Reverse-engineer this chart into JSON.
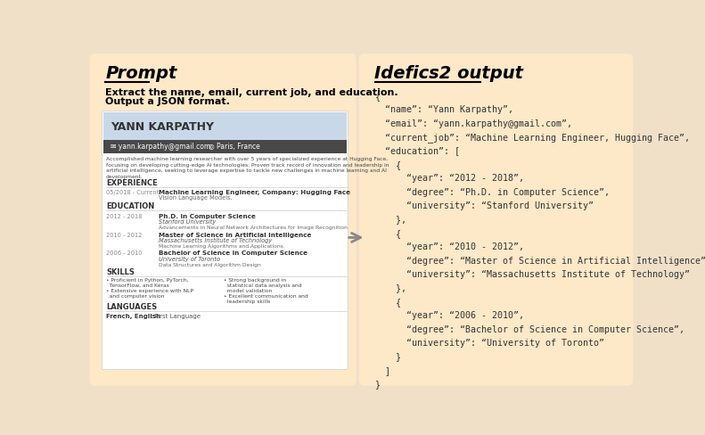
{
  "bg_color": "#fde8c8",
  "outer_bg": "#f0e0c8",
  "left_panel_bg": "#fde8c8",
  "right_panel_bg": "#fde8c8",
  "left_title": "Prompt",
  "right_title": "Idefics2 output",
  "prompt_text_line1": "Extract the name, email, current job, and education.",
  "prompt_text_line2": "Output a JSON format.",
  "resume_header_bg": "#c8d8e8",
  "resume_bar_bg": "#484848",
  "resume_name": "YANN KARPATHY",
  "resume_email": "yann.karpathy@gmail.com",
  "resume_location": "Paris, France",
  "json_output_lines": [
    "{",
    "  “name”: “Yann Karpathy”,",
    "  “email”: “yann.karpathy@gmail.com”,",
    "  “current_job”: “Machine Learning Engineer, Hugging Face”,",
    "  “education”: [",
    "    {",
    "      “year”: “2012 - 2018”,",
    "      “degree”: “Ph.D. in Computer Science”,",
    "      “university”: “Stanford University”",
    "    },",
    "    {",
    "      “year”: “2010 - 2012”,",
    "      “degree”: “Master of Science in Artificial Intelligence”,",
    "      “university”: “Massachusetts Institute of Technology”",
    "    },",
    "    {",
    "      “year”: “2006 - 2010”,",
    "      “degree”: “Bachelor of Science in Computer Science”,",
    "      “university”: “University of Toronto”",
    "    }",
    "  ]",
    "}"
  ]
}
